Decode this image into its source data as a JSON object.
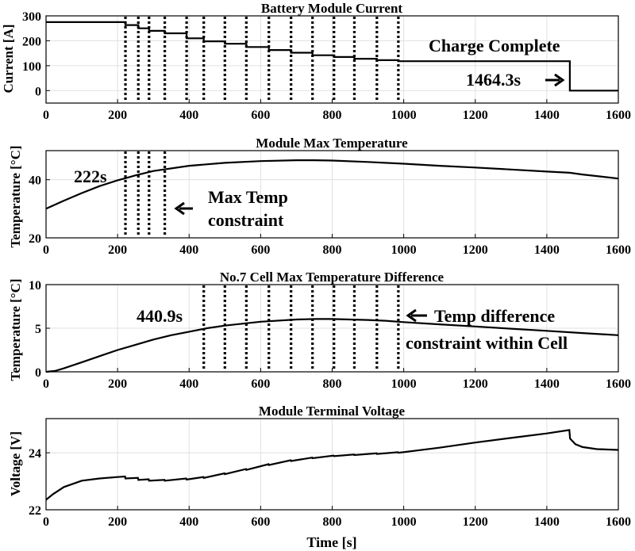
{
  "chart_data": [
    {
      "type": "line",
      "title": "Battery Module Current",
      "xlabel": "",
      "ylabel": "Current [A]",
      "xlim": [
        0,
        1600
      ],
      "ylim": [
        -50,
        300
      ],
      "xticks": [
        0,
        200,
        400,
        600,
        800,
        1000,
        1200,
        1400,
        1600
      ],
      "yticks": [
        0,
        100,
        200,
        300
      ],
      "grid": true,
      "series": [
        {
          "name": "Current",
          "x": [
            0,
            222,
            222,
            258,
            258,
            288,
            288,
            332,
            332,
            393,
            393,
            441,
            441,
            500,
            500,
            560,
            560,
            623,
            623,
            685,
            685,
            745,
            745,
            805,
            805,
            862,
            862,
            925,
            925,
            985,
            985,
            1464.3,
            1464.3,
            1600
          ],
          "values": [
            275,
            275,
            263,
            263,
            250,
            250,
            240,
            240,
            230,
            230,
            210,
            210,
            198,
            198,
            188,
            188,
            175,
            175,
            163,
            163,
            152,
            152,
            142,
            142,
            135,
            135,
            128,
            128,
            122,
            122,
            118,
            118,
            0,
            0
          ]
        }
      ],
      "markers_x": [
        222,
        258,
        288,
        332,
        393,
        441,
        500,
        560,
        623,
        685,
        745,
        805,
        862,
        925,
        985
      ],
      "annotations": [
        "Charge Complete",
        "1464.3s"
      ]
    },
    {
      "type": "line",
      "title": "Module Max Temperature",
      "xlabel": "",
      "ylabel": "Temperature [°C]",
      "xlim": [
        0,
        1600
      ],
      "ylim": [
        20,
        50
      ],
      "xticks": [
        0,
        200,
        400,
        600,
        800,
        1000,
        1200,
        1400,
        1600
      ],
      "yticks": [
        20,
        40
      ],
      "grid": true,
      "series": [
        {
          "name": "Max Temperature",
          "x": [
            0,
            50,
            100,
            150,
            200,
            222,
            250,
            300,
            400,
            500,
            600,
            700,
            750,
            800,
            900,
            1000,
            1100,
            1200,
            1300,
            1400,
            1464,
            1500,
            1550,
            1600
          ],
          "values": [
            30,
            32.8,
            35.4,
            37.8,
            39.8,
            40.5,
            41.5,
            43,
            44.8,
            45.8,
            46.4,
            46.7,
            46.7,
            46.6,
            46.1,
            45.5,
            44.8,
            44.2,
            43.5,
            42.8,
            42.4,
            41.8,
            41.1,
            40.4
          ]
        }
      ],
      "markers_x": [
        222,
        258,
        288,
        332
      ],
      "annotations": [
        "222s",
        "Max Temp",
        "constraint"
      ]
    },
    {
      "type": "line",
      "title": "No.7 Cell Max Temperature Difference",
      "xlabel": "",
      "ylabel": "Temperature [°C]",
      "xlim": [
        0,
        1600
      ],
      "ylim": [
        0,
        10
      ],
      "xticks": [
        0,
        200,
        400,
        600,
        800,
        1000,
        1200,
        1400,
        1600
      ],
      "yticks": [
        0,
        5,
        10
      ],
      "grid": true,
      "series": [
        {
          "name": "Temperature Difference",
          "x": [
            0,
            25,
            50,
            100,
            150,
            200,
            250,
            300,
            350,
            400,
            450,
            500,
            600,
            700,
            750,
            800,
            850,
            900,
            950,
            1000,
            1100,
            1200,
            1300,
            1400,
            1500,
            1600
          ],
          "values": [
            0,
            0.1,
            0.4,
            1.1,
            1.8,
            2.5,
            3.1,
            3.7,
            4.2,
            4.6,
            5,
            5.3,
            5.75,
            6,
            6.05,
            6.05,
            6,
            5.95,
            5.85,
            5.7,
            5.45,
            5.2,
            4.95,
            4.7,
            4.45,
            4.2
          ]
        }
      ],
      "markers_x": [
        441,
        500,
        560,
        623,
        685,
        745,
        805,
        862,
        925,
        985
      ],
      "annotations": [
        "440.9s",
        "Temp difference",
        "constraint within Cell"
      ]
    },
    {
      "type": "line",
      "title": "Module Terminal Voltage",
      "xlabel": "Time [s]",
      "ylabel": "Voltage [V]",
      "xlim": [
        0,
        1600
      ],
      "ylim": [
        22,
        25.2
      ],
      "xticks": [
        0,
        200,
        400,
        600,
        800,
        1000,
        1200,
        1400,
        1600
      ],
      "yticks": [
        22,
        24
      ],
      "grid": true,
      "series": [
        {
          "name": "Voltage",
          "x": [
            0,
            20,
            50,
            100,
            150,
            200,
            221,
            222,
            257,
            258,
            287,
            288,
            331,
            332,
            392,
            393,
            440,
            441,
            499,
            500,
            559,
            560,
            622,
            623,
            684,
            685,
            744,
            745,
            804,
            805,
            861,
            862,
            924,
            925,
            984,
            985,
            1100,
            1200,
            1300,
            1400,
            1463,
            1465,
            1480,
            1500,
            1540,
            1600
          ],
          "values": [
            22.35,
            22.55,
            22.8,
            23.02,
            23.1,
            23.15,
            23.17,
            23.1,
            23.12,
            23.05,
            23.07,
            23.02,
            23.05,
            23.02,
            23.1,
            23.06,
            23.15,
            23.12,
            23.28,
            23.25,
            23.43,
            23.4,
            23.6,
            23.57,
            23.74,
            23.71,
            23.83,
            23.81,
            23.9,
            23.88,
            23.94,
            23.92,
            23.98,
            23.96,
            24.02,
            24,
            24.18,
            24.36,
            24.52,
            24.68,
            24.8,
            24.5,
            24.3,
            24.2,
            24.13,
            24.1
          ]
        }
      ],
      "markers_x": [],
      "annotations": []
    }
  ]
}
